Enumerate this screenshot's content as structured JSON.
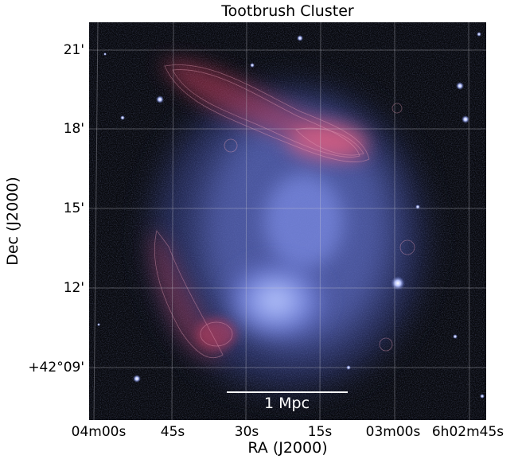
{
  "title": "Tootbrush Cluster",
  "axes": {
    "xlabel": "RA (J2000)",
    "ylabel": "Dec (J2000)",
    "xticks": [
      "04m00s",
      "45s",
      "30s",
      "15s",
      "03m00s",
      "6h02m45s"
    ],
    "yticks": [
      "21'",
      "18'",
      "15'",
      "12'",
      "+42°09'"
    ]
  },
  "scalebar": {
    "label": "1 Mpc"
  },
  "colors": {
    "xray_emission": "#8ea0ff",
    "radio_emission": "#ff5a78",
    "background": "#07080c",
    "grid": "#c8c8d2"
  }
}
